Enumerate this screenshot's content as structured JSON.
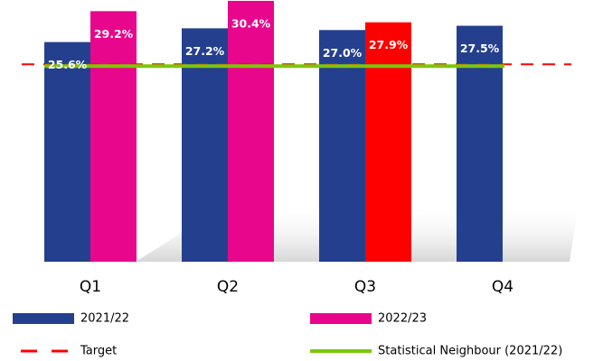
{
  "chart_data": {
    "type": "bar",
    "categories": [
      "Q1",
      "Q2",
      "Q3",
      "Q4"
    ],
    "series": [
      {
        "name": "2021/22",
        "color": "#253f8f",
        "values": [
          25.6,
          27.2,
          27.0,
          27.5
        ],
        "value_labels": [
          "25.6%",
          "27.2%",
          "27.0%",
          "27.5%"
        ]
      },
      {
        "name": "2022/23",
        "color": "#e8068c",
        "colors": [
          "#e8068c",
          "#e8068c",
          "#ff0000",
          null
        ],
        "values": [
          29.2,
          30.4,
          27.9,
          null
        ],
        "value_labels": [
          "29.2%",
          "30.4%",
          "27.9%",
          null
        ]
      }
    ],
    "lines": [
      {
        "name": "Target",
        "value": 23.0,
        "color": "#ff0000",
        "style": "dashed"
      },
      {
        "name": "Statistical Neighbour (2021/22)",
        "value": 22.8,
        "color": "#7ac70c",
        "style": "solid"
      }
    ],
    "ylim": [
      0,
      30.5
    ]
  }
}
